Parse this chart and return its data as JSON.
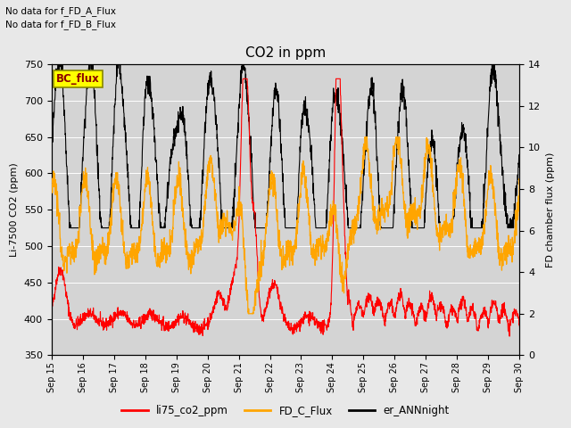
{
  "title": "CO2 in ppm",
  "ylabel_left": "Li-7500 CO2 (ppm)",
  "ylabel_right": "FD chamber flux (ppm)",
  "ylim_left": [
    350,
    750
  ],
  "ylim_right": [
    0,
    14
  ],
  "yticks_left": [
    350,
    400,
    450,
    500,
    550,
    600,
    650,
    700,
    750
  ],
  "yticks_right": [
    0,
    2,
    4,
    6,
    8,
    10,
    12,
    14
  ],
  "text_no_data_1": "No data for f_FD_A_Flux",
  "text_no_data_2": "No data for f_FD_B_Flux",
  "bc_flux_label": "BC_flux",
  "legend_entries": [
    "li75_co2_ppm",
    "FD_C_Flux",
    "er_ANNnight"
  ],
  "legend_colors": [
    "#ff0000",
    "#ffa500",
    "#000000"
  ],
  "line_colors": {
    "li75": "#ff0000",
    "FD_C": "#ffa500",
    "er_ANN": "#000000"
  },
  "background_color": "#e8e8e8",
  "plot_bg_color": "#d4d4d4",
  "xtick_labels": [
    "Sep 15",
    "Sep 16",
    "Sep 17",
    "Sep 18",
    "Sep 19",
    "Sep 20",
    "Sep 21",
    "Sep 22",
    "Sep 23",
    "Sep 24",
    "Sep 25",
    "Sep 26",
    "Sep 27",
    "Sep 28",
    "Sep 29",
    "Sep 30"
  ],
  "figsize": [
    6.4,
    4.8
  ],
  "dpi": 100
}
